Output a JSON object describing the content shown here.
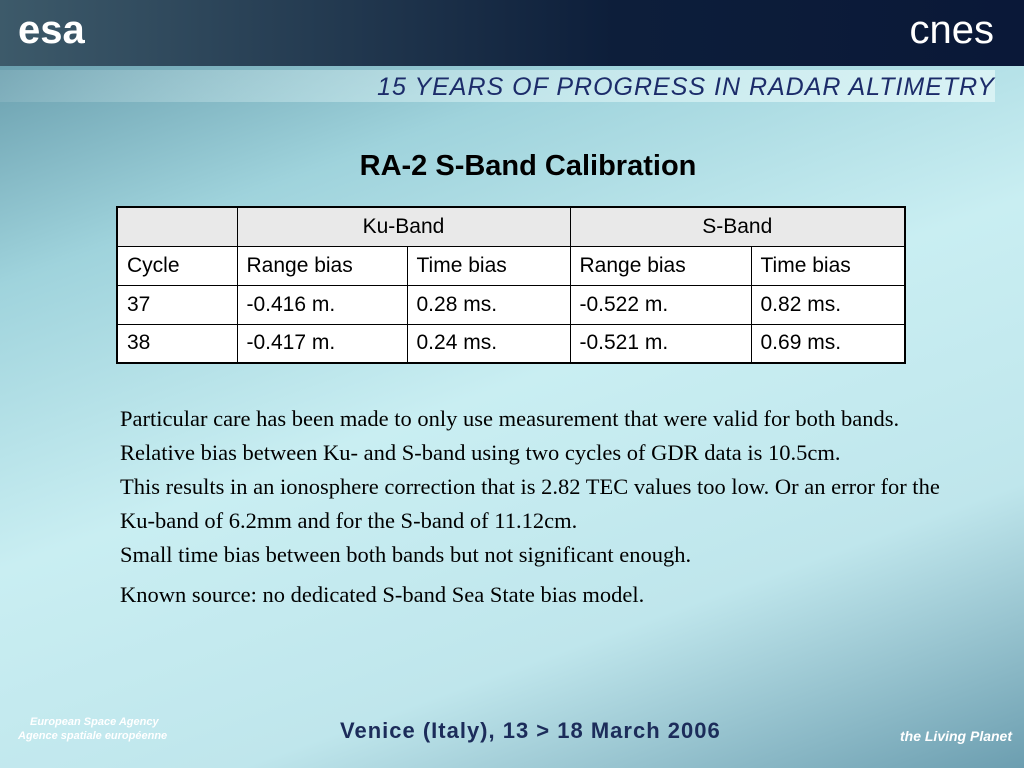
{
  "header": {
    "left_logo": "esa",
    "right_logo": "cnes",
    "banner": "15 YEARS OF PROGRESS IN RADAR ALTIMETRY"
  },
  "title": "RA-2 S-Band Calibration",
  "table": {
    "groups": [
      "Ku-Band",
      "S-Band"
    ],
    "columns": [
      "Cycle",
      "Range bias",
      "Time bias",
      "Range bias",
      "Time bias"
    ],
    "rows": [
      [
        "37",
        "-0.416 m.",
        "0.28 ms.",
        "-0.522 m.",
        "0.82 ms."
      ],
      [
        "38",
        "-0.417 m.",
        "0.24 ms.",
        "-0.521 m.",
        "0.69 ms."
      ]
    ]
  },
  "body": {
    "paragraphs": [
      "Particular care has been made to only use measurement that were valid for both bands. Relative bias between Ku- and S-band using two cycles of GDR data is 10.5cm.",
      "This results in an ionosphere correction that is 2.82 TEC values too low. Or an error for the Ku-band of 6.2mm and for the S-band of 11.12cm.",
      "Small time bias between both bands but not significant enough.",
      "Known source: no dedicated S-band Sea State bias model."
    ]
  },
  "footer": {
    "agency_en": "European Space Agency",
    "agency_fr": "Agence spatiale européenne",
    "venue": "Venice (Italy), 13 > 18 March 2006",
    "tagline": "the Living Planet"
  }
}
